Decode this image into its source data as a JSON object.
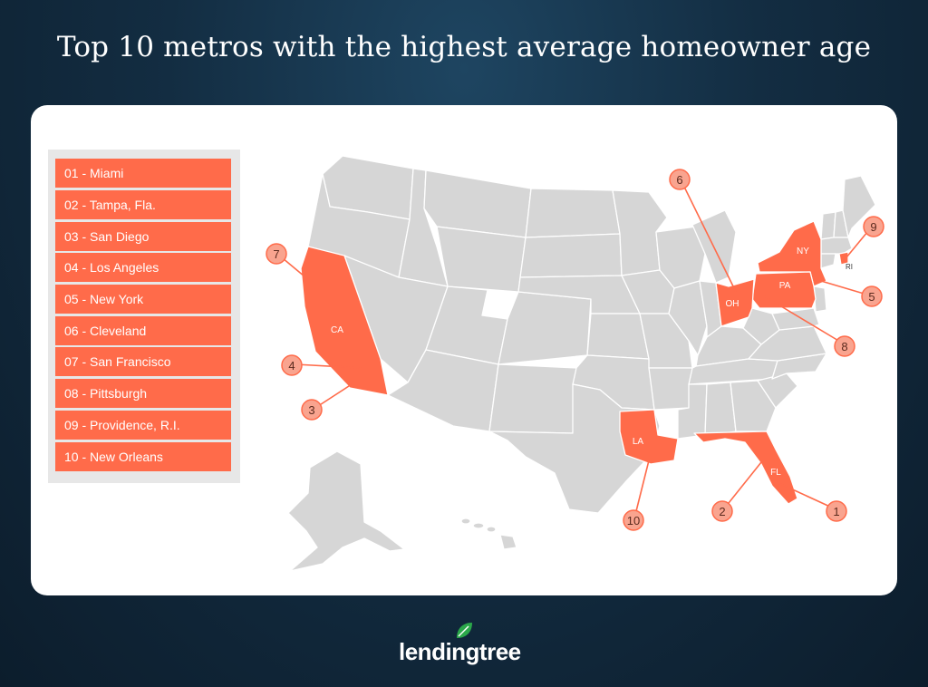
{
  "title": "Top 10 metros with the highest average homeowner age",
  "legend": [
    {
      "label": "01 - Miami"
    },
    {
      "label": "02 - Tampa, Fla."
    },
    {
      "label": "03 - San Diego"
    },
    {
      "label": "04 - Los Angeles"
    },
    {
      "label": "05 - New York"
    },
    {
      "label": "06 - Cleveland"
    },
    {
      "label": "07 - San Francisco"
    },
    {
      "label": "08 - Pittsburgh"
    },
    {
      "label": "09 - Providence, R.I."
    },
    {
      "label": "10 - New Orleans"
    }
  ],
  "states": {
    "ca": "CA",
    "ny": "NY",
    "pa": "PA",
    "oh": "OH",
    "la": "LA",
    "fl": "FL",
    "ri": "RI"
  },
  "markers": {
    "m1": "1",
    "m2": "2",
    "m3": "3",
    "m4": "4",
    "m5": "5",
    "m6": "6",
    "m7": "7",
    "m8": "8",
    "m9": "9",
    "m10": "10"
  },
  "brand": {
    "name": "lendingtree"
  },
  "colors": {
    "highlight": "#ff6b4a",
    "state_fill": "#d6d6d6",
    "marker_fill": "#f9a48f",
    "background": "#132d42"
  }
}
